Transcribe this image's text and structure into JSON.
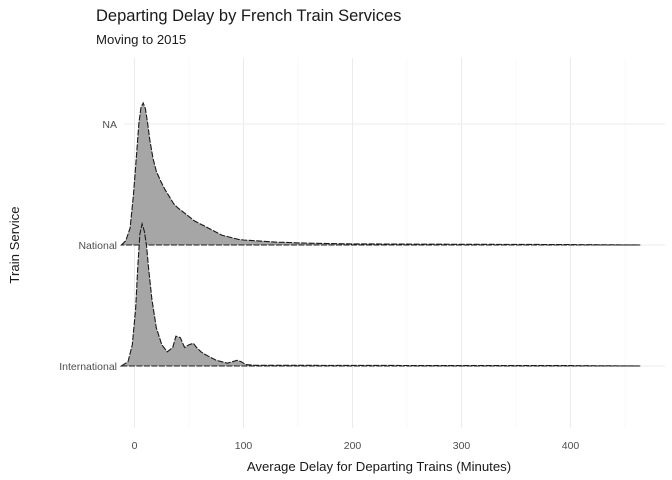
{
  "chart_data": {
    "type": "ridgeline",
    "title": "Departing Delay by French Train Services",
    "subtitle": "Moving to 2015",
    "xlabel": "Average Delay for Departing Trains (Minutes)",
    "ylabel": "Train Service",
    "xlim": [
      -20,
      480
    ],
    "x_ticks": [
      0,
      100,
      200,
      300,
      400
    ],
    "categories": [
      "International",
      "National",
      "NA"
    ],
    "series": [
      {
        "name": "International",
        "x": [
          -12,
          -6,
          -2,
          1,
          3,
          5,
          7,
          9,
          11,
          13,
          16,
          20,
          25,
          30,
          35,
          38,
          42,
          46,
          50,
          54,
          57,
          61,
          65,
          70,
          75,
          80,
          85,
          90,
          94,
          98,
          102,
          110,
          200,
          300,
          400,
          464
        ],
        "density": [
          0.0,
          0.03,
          0.15,
          0.4,
          0.7,
          0.93,
          1.0,
          0.95,
          0.85,
          0.68,
          0.47,
          0.27,
          0.15,
          0.1,
          0.13,
          0.21,
          0.2,
          0.13,
          0.15,
          0.16,
          0.13,
          0.1,
          0.08,
          0.06,
          0.04,
          0.03,
          0.02,
          0.03,
          0.04,
          0.03,
          0.01,
          0.005,
          0.004,
          0.003,
          0.003,
          0.0
        ]
      },
      {
        "name": "National",
        "x": [
          -12,
          -8,
          -4,
          -1,
          2,
          4,
          6,
          8,
          10,
          12,
          14,
          17,
          20,
          24,
          28,
          32,
          36,
          40,
          45,
          50,
          55,
          60,
          65,
          70,
          75,
          80,
          85,
          90,
          95,
          100,
          110,
          120,
          130,
          140,
          150,
          165,
          180,
          200,
          250,
          300,
          350,
          400,
          464
        ],
        "density": [
          0.0,
          0.03,
          0.12,
          0.35,
          0.65,
          0.86,
          0.97,
          1.0,
          0.96,
          0.86,
          0.74,
          0.61,
          0.52,
          0.45,
          0.39,
          0.34,
          0.29,
          0.26,
          0.23,
          0.2,
          0.17,
          0.15,
          0.13,
          0.11,
          0.09,
          0.07,
          0.06,
          0.05,
          0.04,
          0.035,
          0.03,
          0.025,
          0.02,
          0.018,
          0.015,
          0.012,
          0.01,
          0.008,
          0.006,
          0.005,
          0.004,
          0.003,
          0.0
        ]
      }
    ]
  }
}
